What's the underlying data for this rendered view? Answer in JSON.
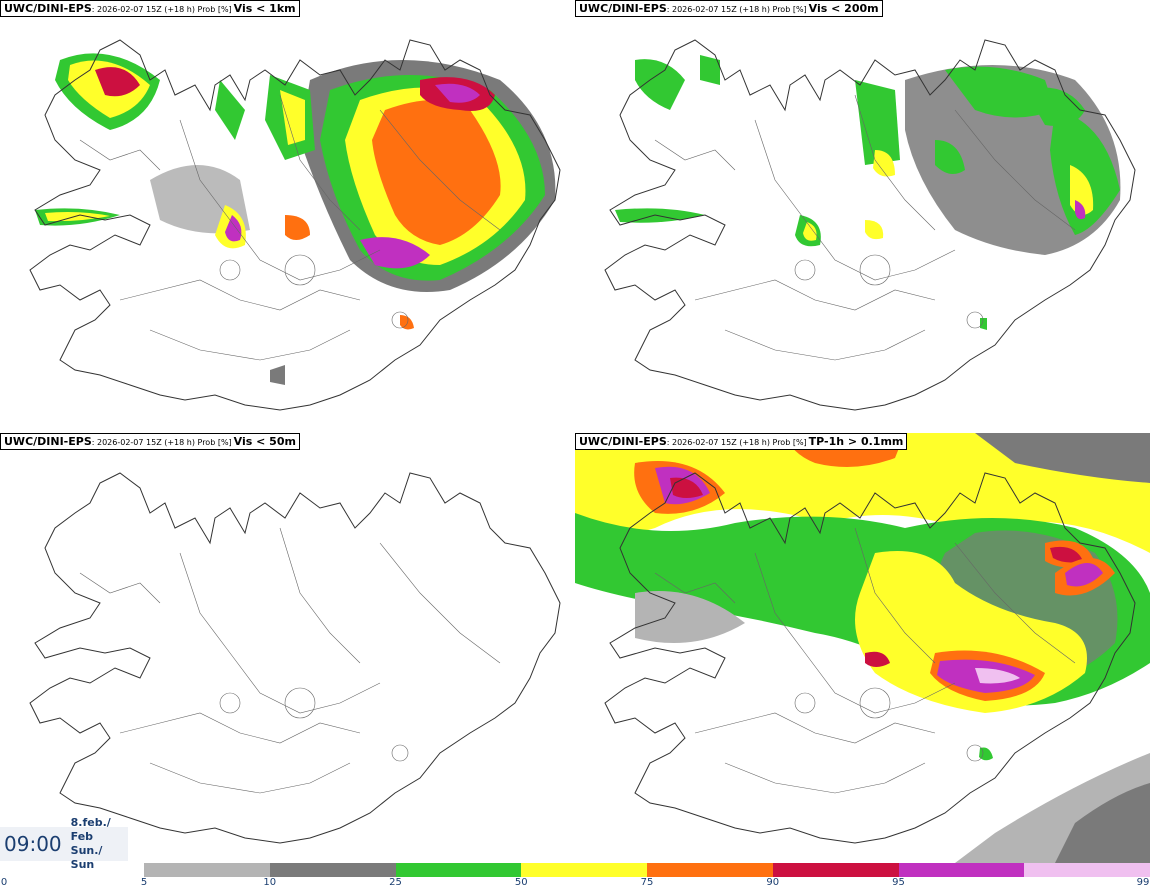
{
  "panels": [
    {
      "source": "UWC/DINI-EPS",
      "meta": ": 2026-02-07 15Z (+18 h) Prob [%] ",
      "threshold": "Vis < 1km"
    },
    {
      "source": "UWC/DINI-EPS",
      "meta": ": 2026-02-07 15Z (+18 h) Prob [%] ",
      "threshold": "Vis < 200m"
    },
    {
      "source": "UWC/DINI-EPS",
      "meta": ": 2026-02-07 15Z (+18 h) Prob [%] ",
      "threshold": "Vis < 50m"
    },
    {
      "source": "UWC/DINI-EPS",
      "meta": ": 2026-02-07 15Z (+18 h) Prob [%] ",
      "threshold": "TP-1h > 0.1mm"
    }
  ],
  "valid_time": {
    "time": "09:00",
    "date_line1": "8.feb./ Feb",
    "date_line2": "Sun./ Sun"
  },
  "legend": {
    "ticks": [
      "0",
      "5",
      "10",
      "25",
      "50",
      "75",
      "90",
      "95",
      "99"
    ],
    "colors": [
      "#ffffff",
      "#b4b4b4",
      "#7a7a7a",
      "#32c832",
      "#ffff2a",
      "#ff7010",
      "#cc1040",
      "#c030c0",
      "#f0c0f0"
    ]
  }
}
